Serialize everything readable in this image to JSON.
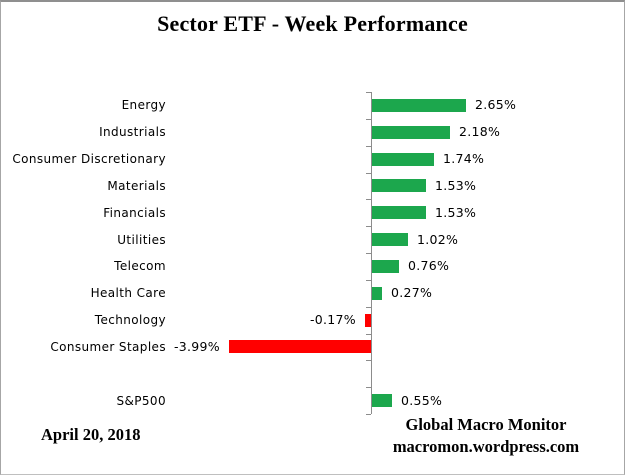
{
  "title": "Sector ETF - Week Performance",
  "footer": {
    "date": "April 20, 2018",
    "source_line1": "Global Macro Monitor",
    "source_line2": "macromon.wordpress.com"
  },
  "colors": {
    "positive_bar": "#1CA74D",
    "negative_bar": "#FF0000",
    "axis": "#8C8C8C",
    "text": "#000000"
  },
  "chart_data": {
    "type": "bar",
    "orientation": "horizontal",
    "title": "Sector ETF - Week Performance",
    "xlabel": "",
    "ylabel": "",
    "grid": false,
    "legend": false,
    "xlim_pct": [
      -4.5,
      4.5
    ],
    "categories": [
      "Energy",
      "Industrials",
      "Consumer Discretionary",
      "Materials",
      "Financials",
      "Utilities",
      "Telecom",
      "Health Care",
      "Technology",
      "Consumer Staples",
      "",
      "S&P500"
    ],
    "values": [
      2.65,
      2.18,
      1.74,
      1.53,
      1.53,
      1.02,
      0.76,
      0.27,
      -0.17,
      -3.99,
      null,
      0.55
    ],
    "data_labels": [
      "2.65%",
      "2.18%",
      "1.74%",
      "1.53%",
      "1.53%",
      "1.02%",
      "0.76%",
      "0.27%",
      "-0.17%",
      "-3.99%",
      "",
      "0.55%"
    ]
  }
}
